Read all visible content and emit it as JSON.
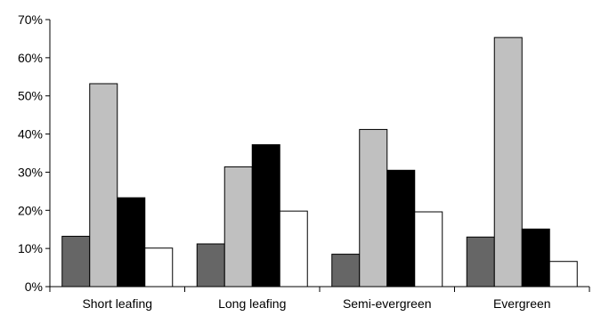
{
  "chart_data": {
    "type": "bar",
    "title": "",
    "xlabel": "",
    "ylabel": "",
    "categories": [
      "Short leafing",
      "Long leafing",
      "Semi-evergreen",
      "Evergreen"
    ],
    "series": [
      {
        "values": [
          13.2,
          11.2,
          8.5,
          13.0
        ],
        "color": "#666666"
      },
      {
        "values": [
          53.2,
          31.4,
          41.2,
          65.3
        ],
        "color": "#c0c0c0"
      },
      {
        "values": [
          23.3,
          37.2,
          30.5,
          15.1
        ],
        "color": "#000000"
      },
      {
        "values": [
          10.1,
          19.8,
          19.6,
          6.6
        ],
        "color": "#ffffff"
      }
    ],
    "ylim": [
      0,
      70
    ],
    "y_ticks": [
      "0%",
      "10%",
      "20%",
      "30%",
      "40%",
      "50%",
      "60%",
      "70%"
    ],
    "y_tick_values": [
      0,
      10,
      20,
      30,
      40,
      50,
      60,
      70
    ],
    "grid": false,
    "legend": "none"
  }
}
